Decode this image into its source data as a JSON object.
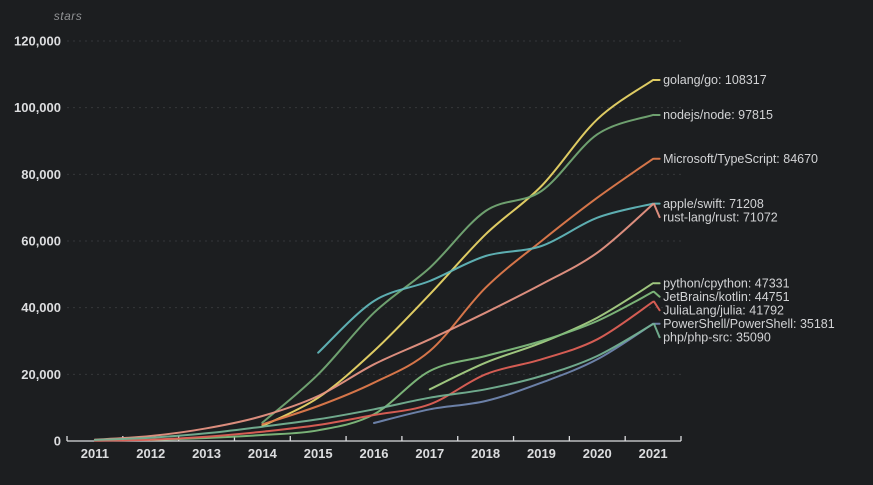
{
  "chart_data": {
    "type": "line",
    "title": "",
    "xlabel": "",
    "ylabel": "stars",
    "x": [
      2011,
      2012,
      2013,
      2014,
      2015,
      2016,
      2017,
      2018,
      2019,
      2020,
      2021
    ],
    "ylim": [
      0,
      120000
    ],
    "grid": "horizontal-dashed",
    "legend_position": "right-end-labels",
    "axis_color": "#dcdddf",
    "gridline_color": "#3e4043",
    "yticks": [
      {
        "value": 0,
        "label": "0"
      },
      {
        "value": 20000,
        "label": "20,000"
      },
      {
        "value": 40000,
        "label": "40,000"
      },
      {
        "value": 60000,
        "label": "60,000"
      },
      {
        "value": 80000,
        "label": "80,000"
      },
      {
        "value": 100000,
        "label": "100,000"
      },
      {
        "value": 120000,
        "label": "120,000"
      }
    ],
    "xticks": [
      "2011",
      "2012",
      "2013",
      "2014",
      "2015",
      "2016",
      "2017",
      "2018",
      "2019",
      "2020",
      "2021"
    ],
    "series": [
      {
        "name": "golang/go",
        "final": 108317,
        "color": "#e9d567",
        "values": [
          null,
          null,
          null,
          4500,
          13000,
          27000,
          44000,
          62000,
          76500,
          96500,
          108317
        ]
      },
      {
        "name": "nodejs/node",
        "final": 97815,
        "color": "#73a874",
        "values": [
          null,
          null,
          null,
          5500,
          20000,
          38500,
          52000,
          69000,
          75000,
          92000,
          97815
        ]
      },
      {
        "name": "Microsoft/TypeScript",
        "final": 84670,
        "color": "#df7a4c",
        "values": [
          null,
          null,
          null,
          5000,
          10500,
          17500,
          27000,
          46000,
          60000,
          73000,
          84670
        ]
      },
      {
        "name": "apple/swift",
        "final": 71208,
        "color": "#61b6b9",
        "values": [
          null,
          null,
          null,
          null,
          26500,
          42000,
          48000,
          55500,
          58500,
          67000,
          71208
        ]
      },
      {
        "name": "rust-lang/rust",
        "final": 71072,
        "color": "#e69383",
        "values": [
          400,
          1500,
          3800,
          7500,
          13500,
          23000,
          30500,
          38500,
          47000,
          56500,
          71072
        ]
      },
      {
        "name": "python/cpython",
        "final": 47331,
        "color": "#a5cf84",
        "values": [
          null,
          null,
          null,
          null,
          null,
          null,
          15500,
          23500,
          29500,
          37000,
          47331
        ]
      },
      {
        "name": "JetBrains/kotlin",
        "final": 44751,
        "color": "#7fba7c",
        "values": [
          null,
          300,
          900,
          1800,
          3200,
          8000,
          21000,
          25500,
          30000,
          36000,
          44751
        ]
      },
      {
        "name": "JuliaLang/julia",
        "final": 41792,
        "color": "#de6056",
        "values": [
          100,
          400,
          1300,
          2800,
          4800,
          7800,
          11000,
          20000,
          24500,
          30500,
          41792
        ]
      },
      {
        "name": "PowerShell/PowerShell",
        "final": 35181,
        "color": "#7086af",
        "values": [
          null,
          null,
          null,
          null,
          null,
          5400,
          9500,
          12000,
          17500,
          24500,
          35181
        ]
      },
      {
        "name": "php/php-src",
        "final": 35090,
        "color": "#74b192",
        "values": [
          300,
          1000,
          2300,
          4300,
          6500,
          9500,
          13000,
          15500,
          19500,
          25500,
          35090
        ]
      }
    ],
    "end_labels": [
      "golang/go: 108317",
      "nodejs/node: 97815",
      "Microsoft/TypeScript: 84670",
      "apple/swift: 71208",
      "rust-lang/rust: 71072",
      "python/cpython: 47331",
      "JetBrains/kotlin: 44751",
      "JuliaLang/julia: 41792",
      "PowerShell/PowerShell: 35181",
      "php/php-src: 35090"
    ]
  }
}
